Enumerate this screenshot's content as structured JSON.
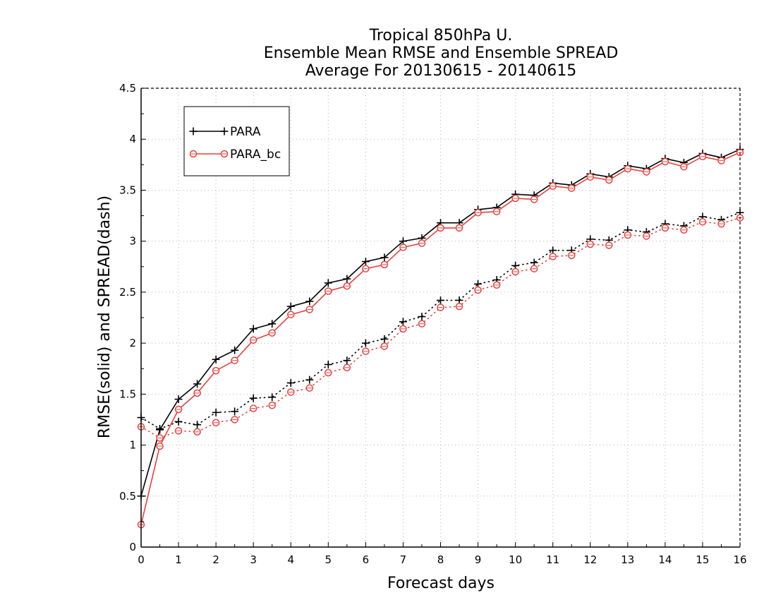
{
  "chart_data": {
    "type": "line",
    "title": [
      "Tropical 850hPa U.",
      "Ensemble Mean RMSE and Ensemble SPREAD",
      "Average For 20130615 - 20140615"
    ],
    "xlabel": "Forecast days",
    "ylabel": "RMSE(solid) and SPREAD(dash)",
    "xlim": [
      0,
      16
    ],
    "ylim": [
      0,
      4.5
    ],
    "xticks": [
      0,
      1,
      2,
      3,
      4,
      5,
      6,
      7,
      8,
      9,
      10,
      11,
      12,
      13,
      14,
      15,
      16
    ],
    "yticks": [
      0,
      0.5,
      1,
      1.5,
      2,
      2.5,
      3,
      3.5,
      4,
      4.5
    ],
    "ytick_labels": [
      "0",
      "0.5",
      "1",
      "1.5",
      "2",
      "2.5",
      "3",
      "3.5",
      "4",
      "4.5"
    ],
    "grid": true,
    "legend_position": "top-left",
    "x": [
      0,
      0.5,
      1,
      1.5,
      2,
      2.5,
      3,
      3.5,
      4,
      4.5,
      5,
      5.5,
      6,
      6.5,
      7,
      7.5,
      8,
      8.5,
      9,
      9.5,
      10,
      10.5,
      11,
      11.5,
      12,
      12.5,
      13,
      13.5,
      14,
      14.5,
      15,
      15.5,
      16
    ],
    "series": [
      {
        "name": "PARA",
        "color": "#000000",
        "marker": "plus",
        "rmse": [
          0.5,
          1.15,
          1.45,
          1.6,
          1.84,
          1.93,
          2.14,
          2.19,
          2.36,
          2.41,
          2.59,
          2.63,
          2.8,
          2.84,
          3.0,
          3.03,
          3.18,
          3.18,
          3.31,
          3.33,
          3.46,
          3.45,
          3.57,
          3.55,
          3.66,
          3.63,
          3.74,
          3.71,
          3.81,
          3.77,
          3.86,
          3.82,
          3.9
        ],
        "spread": [
          1.27,
          1.16,
          1.23,
          1.2,
          1.32,
          1.33,
          1.46,
          1.47,
          1.61,
          1.64,
          1.79,
          1.83,
          2.0,
          2.04,
          2.21,
          2.26,
          2.42,
          2.42,
          2.58,
          2.62,
          2.76,
          2.79,
          2.91,
          2.91,
          3.02,
          3.01,
          3.11,
          3.09,
          3.17,
          3.15,
          3.24,
          3.21,
          3.28
        ]
      },
      {
        "name": "PARA_bc",
        "color": "#e8413c",
        "marker": "circle",
        "rmse": [
          0.22,
          0.99,
          1.35,
          1.51,
          1.73,
          1.83,
          2.03,
          2.1,
          2.28,
          2.33,
          2.51,
          2.56,
          2.73,
          2.77,
          2.94,
          2.98,
          3.13,
          3.13,
          3.28,
          3.29,
          3.42,
          3.41,
          3.54,
          3.52,
          3.63,
          3.6,
          3.71,
          3.68,
          3.78,
          3.73,
          3.83,
          3.79,
          3.87
        ],
        "spread": [
          1.18,
          1.07,
          1.14,
          1.13,
          1.22,
          1.25,
          1.36,
          1.39,
          1.52,
          1.56,
          1.71,
          1.76,
          1.92,
          1.97,
          2.14,
          2.19,
          2.35,
          2.36,
          2.52,
          2.57,
          2.7,
          2.73,
          2.85,
          2.86,
          2.97,
          2.96,
          3.06,
          3.05,
          3.13,
          3.11,
          3.19,
          3.17,
          3.23
        ]
      }
    ]
  }
}
